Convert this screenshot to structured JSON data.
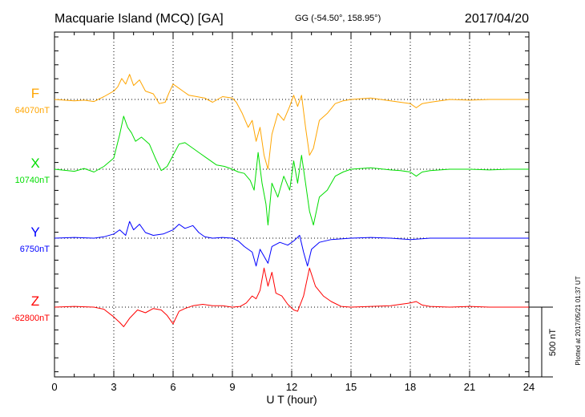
{
  "header": {
    "station": "Macquarie Island (MCQ)  [GA]",
    "coords": "GG (-54.50°, 158.95°)",
    "date": "2017/04/20"
  },
  "side_note": "Plotted at 2017/05/21 01:37 UT",
  "chart_data": {
    "type": "line",
    "xlabel": "U T (hour)",
    "xlim": [
      0,
      24
    ],
    "xticks": [
      0,
      3,
      6,
      9,
      12,
      15,
      18,
      21,
      24
    ],
    "scale_bar": {
      "label": "500 nT",
      "value_nT": 500
    },
    "colors": {
      "F": "#ffa500",
      "X": "#00dd00",
      "Y": "#0000ff",
      "Z": "#ff0000"
    },
    "series": [
      {
        "name": "F",
        "baseline": "64070nT",
        "color": "#ffa500",
        "points": [
          [
            0,
            0
          ],
          [
            1,
            -10
          ],
          [
            1.5,
            -5
          ],
          [
            2,
            -15
          ],
          [
            2.5,
            20
          ],
          [
            3,
            60
          ],
          [
            3.2,
            90
          ],
          [
            3.4,
            150
          ],
          [
            3.6,
            110
          ],
          [
            3.8,
            180
          ],
          [
            4.0,
            100
          ],
          [
            4.3,
            140
          ],
          [
            4.6,
            60
          ],
          [
            5.0,
            40
          ],
          [
            5.3,
            -30
          ],
          [
            5.6,
            -20
          ],
          [
            5.8,
            50
          ],
          [
            6.0,
            110
          ],
          [
            6.2,
            90
          ],
          [
            6.5,
            60
          ],
          [
            6.8,
            30
          ],
          [
            7.2,
            20
          ],
          [
            7.6,
            10
          ],
          [
            8.0,
            -20
          ],
          [
            8.5,
            20
          ],
          [
            9.0,
            10
          ],
          [
            9.2,
            -20
          ],
          [
            9.5,
            -100
          ],
          [
            9.8,
            -200
          ],
          [
            10.0,
            -150
          ],
          [
            10.2,
            -300
          ],
          [
            10.4,
            -200
          ],
          [
            10.6,
            -400
          ],
          [
            10.8,
            -500
          ],
          [
            11.0,
            -250
          ],
          [
            11.3,
            -100
          ],
          [
            11.6,
            -150
          ],
          [
            11.9,
            -50
          ],
          [
            12.1,
            30
          ],
          [
            12.3,
            -50
          ],
          [
            12.5,
            30
          ],
          [
            12.7,
            -200
          ],
          [
            12.9,
            -400
          ],
          [
            13.1,
            -350
          ],
          [
            13.4,
            -150
          ],
          [
            13.8,
            -100
          ],
          [
            14.2,
            -30
          ],
          [
            14.6,
            -10
          ],
          [
            15,
            0
          ],
          [
            16,
            10
          ],
          [
            17,
            -10
          ],
          [
            17.5,
            -20
          ],
          [
            18,
            -30
          ],
          [
            18.3,
            -60
          ],
          [
            18.6,
            -30
          ],
          [
            19,
            -20
          ],
          [
            20,
            0
          ],
          [
            21,
            -5
          ],
          [
            22,
            0
          ],
          [
            23,
            0
          ],
          [
            24,
            0
          ]
        ]
      },
      {
        "name": "X",
        "baseline": "10740nT",
        "color": "#00dd00",
        "points": [
          [
            0,
            0
          ],
          [
            1,
            -15
          ],
          [
            1.5,
            5
          ],
          [
            2,
            -20
          ],
          [
            2.5,
            20
          ],
          [
            3,
            80
          ],
          [
            3.3,
            250
          ],
          [
            3.5,
            380
          ],
          [
            3.7,
            300
          ],
          [
            3.9,
            260
          ],
          [
            4.1,
            200
          ],
          [
            4.4,
            230
          ],
          [
            4.8,
            180
          ],
          [
            5.1,
            80
          ],
          [
            5.4,
            -10
          ],
          [
            5.7,
            20
          ],
          [
            6.0,
            100
          ],
          [
            6.3,
            180
          ],
          [
            6.6,
            190
          ],
          [
            7.0,
            150
          ],
          [
            7.4,
            110
          ],
          [
            7.8,
            70
          ],
          [
            8.2,
            30
          ],
          [
            8.6,
            20
          ],
          [
            9.0,
            0
          ],
          [
            9.3,
            -20
          ],
          [
            9.6,
            -30
          ],
          [
            9.9,
            -80
          ],
          [
            10.1,
            -150
          ],
          [
            10.3,
            120
          ],
          [
            10.5,
            -100
          ],
          [
            10.7,
            -250
          ],
          [
            10.8,
            -400
          ],
          [
            11.0,
            -100
          ],
          [
            11.3,
            -200
          ],
          [
            11.6,
            -50
          ],
          [
            11.9,
            -150
          ],
          [
            12.1,
            60
          ],
          [
            12.3,
            -100
          ],
          [
            12.5,
            100
          ],
          [
            12.7,
            -100
          ],
          [
            12.9,
            -300
          ],
          [
            13.1,
            -400
          ],
          [
            13.4,
            -200
          ],
          [
            13.8,
            -150
          ],
          [
            14.2,
            -50
          ],
          [
            14.6,
            -20
          ],
          [
            15,
            0
          ],
          [
            16,
            10
          ],
          [
            17,
            -5
          ],
          [
            17.5,
            -10
          ],
          [
            18,
            -20
          ],
          [
            18.3,
            -50
          ],
          [
            18.6,
            -20
          ],
          [
            19,
            -10
          ],
          [
            20,
            0
          ],
          [
            21,
            0
          ],
          [
            22,
            -5
          ],
          [
            23,
            0
          ],
          [
            24,
            0
          ]
        ]
      },
      {
        "name": "Y",
        "baseline": "6750nT",
        "color": "#0000ff",
        "points": [
          [
            0,
            0
          ],
          [
            1,
            5
          ],
          [
            2,
            0
          ],
          [
            2.5,
            10
          ],
          [
            3,
            30
          ],
          [
            3.3,
            60
          ],
          [
            3.6,
            20
          ],
          [
            3.8,
            120
          ],
          [
            4.0,
            60
          ],
          [
            4.3,
            100
          ],
          [
            4.6,
            40
          ],
          [
            5.0,
            20
          ],
          [
            5.5,
            30
          ],
          [
            6.0,
            60
          ],
          [
            6.3,
            100
          ],
          [
            6.6,
            70
          ],
          [
            7.0,
            90
          ],
          [
            7.3,
            40
          ],
          [
            7.6,
            10
          ],
          [
            8,
            0
          ],
          [
            8.5,
            5
          ],
          [
            9,
            0
          ],
          [
            9.3,
            -20
          ],
          [
            9.6,
            -60
          ],
          [
            10.0,
            -100
          ],
          [
            10.2,
            -200
          ],
          [
            10.4,
            -80
          ],
          [
            10.6,
            -130
          ],
          [
            10.8,
            -180
          ],
          [
            11.0,
            -60
          ],
          [
            11.4,
            -30
          ],
          [
            11.8,
            -50
          ],
          [
            12.1,
            -20
          ],
          [
            12.4,
            20
          ],
          [
            12.6,
            -100
          ],
          [
            12.8,
            -200
          ],
          [
            13.0,
            -80
          ],
          [
            13.4,
            -30
          ],
          [
            14,
            -10
          ],
          [
            15,
            0
          ],
          [
            16,
            5
          ],
          [
            17,
            0
          ],
          [
            18,
            -10
          ],
          [
            19,
            0
          ],
          [
            20,
            0
          ],
          [
            21,
            0
          ],
          [
            22,
            0
          ],
          [
            23,
            0
          ],
          [
            24,
            0
          ]
        ]
      },
      {
        "name": "Z",
        "baseline": "-62800nT",
        "color": "#ff0000",
        "points": [
          [
            0,
            0
          ],
          [
            1,
            5
          ],
          [
            2,
            0
          ],
          [
            2.5,
            -15
          ],
          [
            3,
            -70
          ],
          [
            3.3,
            -110
          ],
          [
            3.5,
            -140
          ],
          [
            3.8,
            -80
          ],
          [
            4.2,
            -20
          ],
          [
            4.6,
            -40
          ],
          [
            5.0,
            -10
          ],
          [
            5.4,
            -20
          ],
          [
            5.7,
            -60
          ],
          [
            6.0,
            -120
          ],
          [
            6.3,
            -30
          ],
          [
            6.6,
            -10
          ],
          [
            7.0,
            10
          ],
          [
            7.5,
            20
          ],
          [
            8.0,
            10
          ],
          [
            8.5,
            10
          ],
          [
            9.0,
            0
          ],
          [
            9.4,
            5
          ],
          [
            9.7,
            30
          ],
          [
            10.0,
            80
          ],
          [
            10.2,
            60
          ],
          [
            10.4,
            120
          ],
          [
            10.6,
            280
          ],
          [
            10.8,
            150
          ],
          [
            11.0,
            250
          ],
          [
            11.2,
            100
          ],
          [
            11.5,
            80
          ],
          [
            11.8,
            20
          ],
          [
            12.1,
            -20
          ],
          [
            12.3,
            -30
          ],
          [
            12.6,
            80
          ],
          [
            12.9,
            280
          ],
          [
            13.2,
            150
          ],
          [
            13.6,
            80
          ],
          [
            14,
            40
          ],
          [
            14.5,
            5
          ],
          [
            15,
            0
          ],
          [
            16,
            5
          ],
          [
            17,
            10
          ],
          [
            17.5,
            20
          ],
          [
            18,
            30
          ],
          [
            18.3,
            40
          ],
          [
            18.6,
            15
          ],
          [
            19,
            5
          ],
          [
            20,
            0
          ],
          [
            21,
            5
          ],
          [
            22,
            0
          ],
          [
            23,
            0
          ],
          [
            24,
            0
          ]
        ]
      }
    ]
  }
}
